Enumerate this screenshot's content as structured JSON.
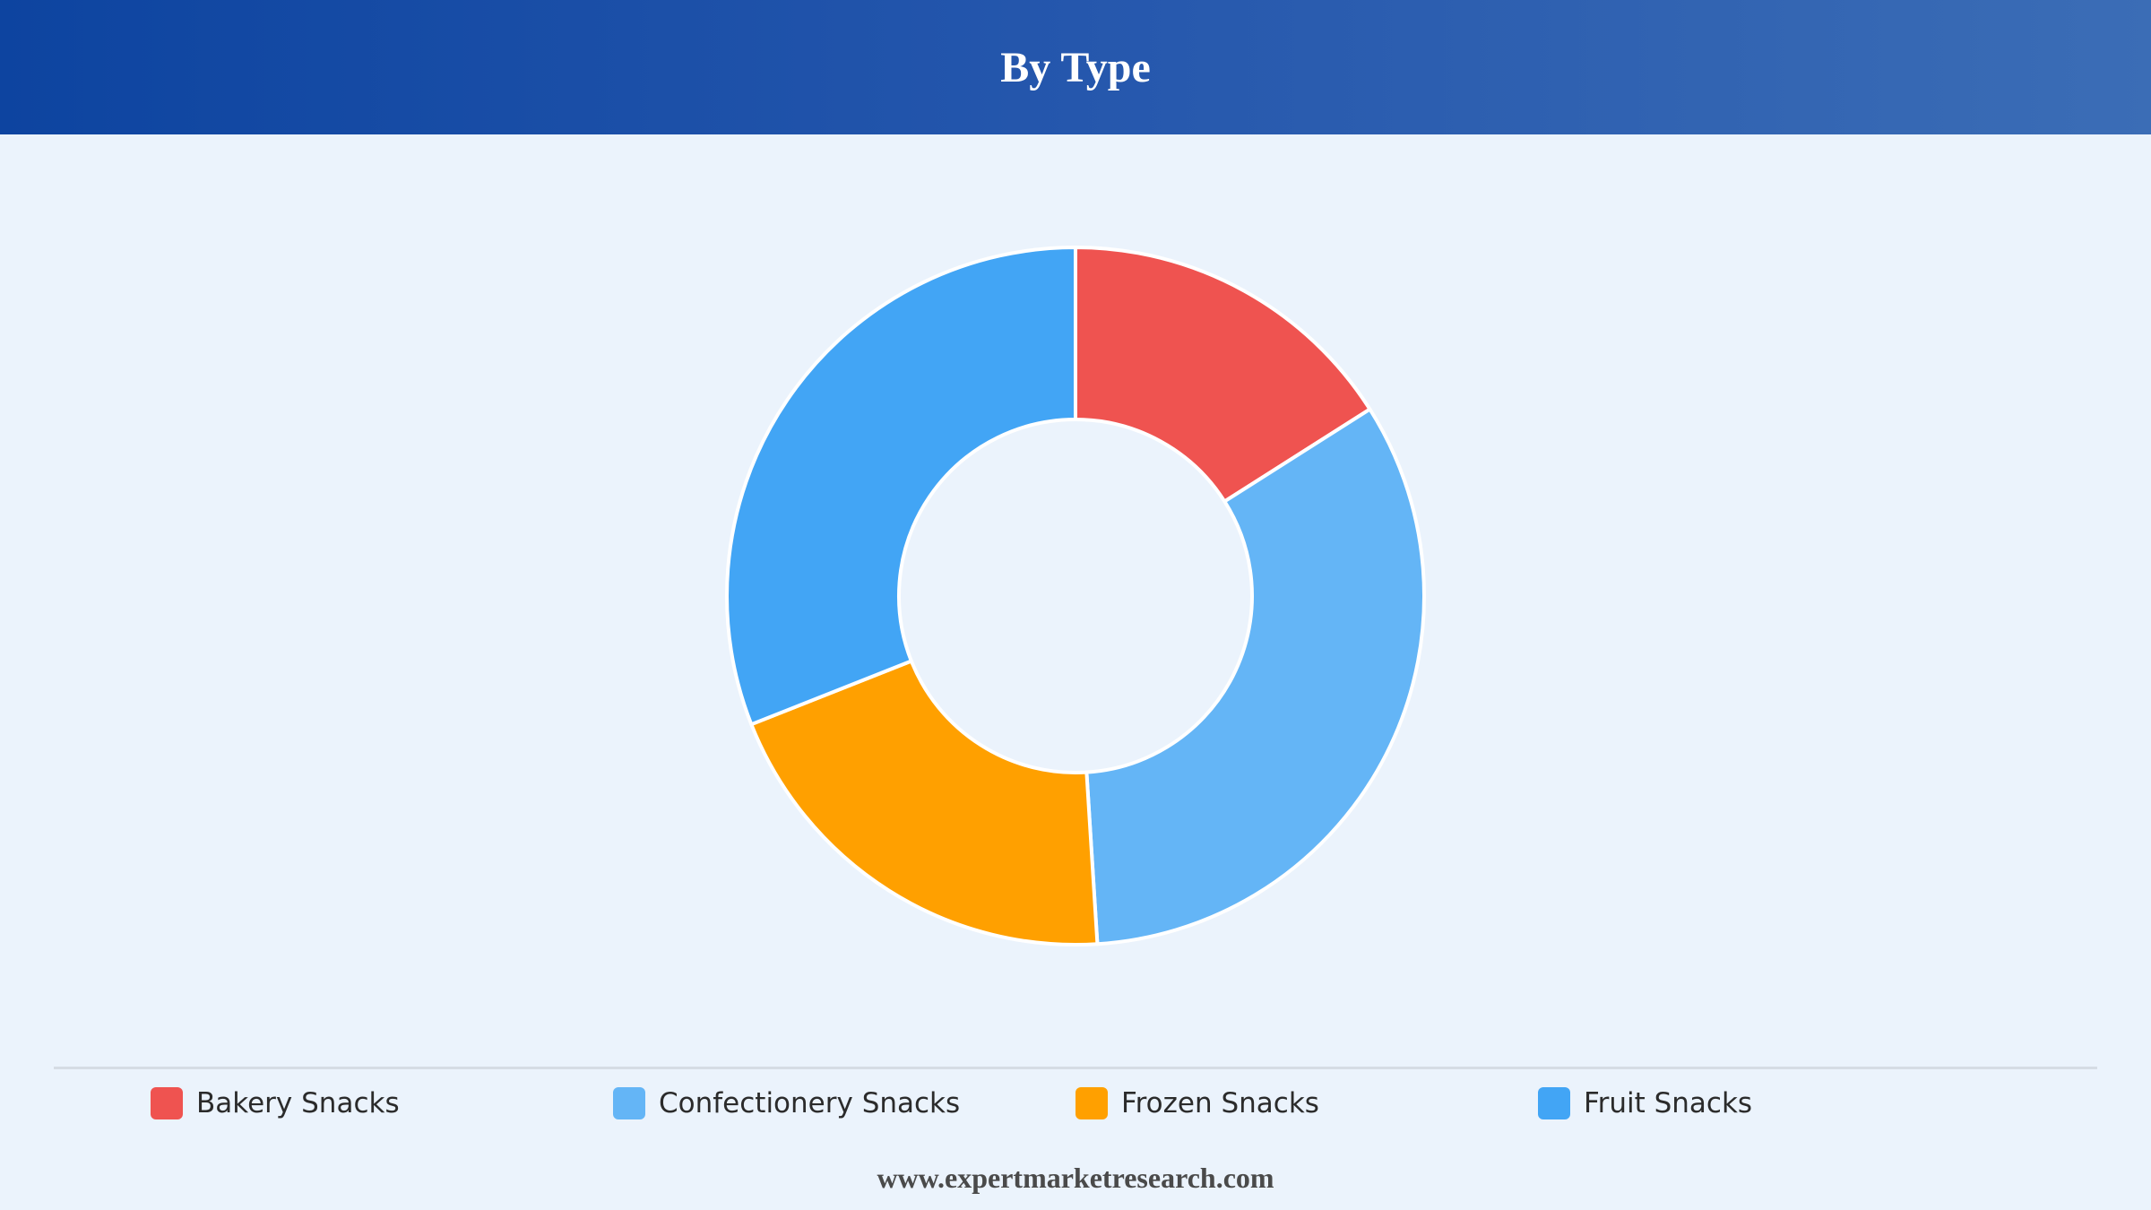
{
  "header": {
    "title": "By Type"
  },
  "chart_data": {
    "type": "pie",
    "variant": "donut",
    "title": "By Type",
    "categories": [
      "Bakery Snacks",
      "Confectionery Snacks",
      "Frozen Snacks",
      "Fruit Snacks"
    ],
    "values": [
      16,
      33,
      20,
      31
    ],
    "unit": "%",
    "colors": [
      "#ef5350",
      "#64b5f6",
      "#ffa000",
      "#42a5f5"
    ],
    "start_angle": "12 o'clock",
    "direction": "clockwise",
    "legend_position": "bottom",
    "data_labels": false
  },
  "legend": {
    "items": [
      {
        "label": "Bakery Snacks",
        "color": "#ef5350"
      },
      {
        "label": "Confectionery Snacks",
        "color": "#64b5f6"
      },
      {
        "label": "Frozen Snacks",
        "color": "#ffa000"
      },
      {
        "label": "Fruit Snacks",
        "color": "#42a5f5"
      }
    ]
  },
  "footer": {
    "source_text": "www.expertmarketresearch.com"
  }
}
